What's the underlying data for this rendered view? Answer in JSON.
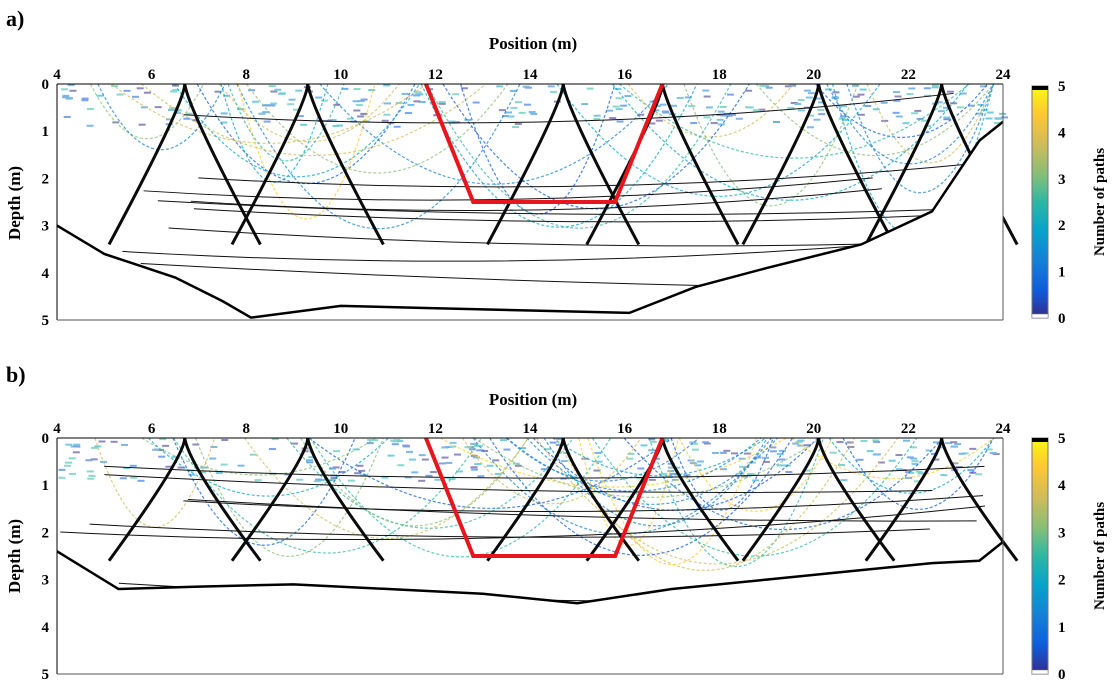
{
  "chart_data": [
    {
      "type": "heatmap",
      "panel_label": "a)",
      "xlabel": "Position (m)",
      "ylabel": "Depth (m)",
      "xlim": [
        4,
        24
      ],
      "ylim": [
        0,
        5
      ],
      "y_inverted": true,
      "x_axis_position": "top",
      "xticks": [
        "4",
        "6",
        "8",
        "10",
        "12",
        "14",
        "16",
        "18",
        "20",
        "22",
        "24"
      ],
      "yticks": [
        "0",
        "1",
        "2",
        "3",
        "4",
        "5"
      ],
      "colorbar": {
        "label": "Number of paths",
        "range": [
          0,
          5
        ],
        "ticks": [
          "0",
          "1",
          "2",
          "3",
          "4",
          "5"
        ],
        "colormap": "parula",
        "colors": [
          "#352a87",
          "#0f5cdd",
          "#1481d6",
          "#06a4ca",
          "#2eb7a4",
          "#87bf77",
          "#d1bb59",
          "#fec832",
          "#f9fb0e"
        ]
      },
      "overlay_trapezoid": {
        "color": "#e8161c",
        "x": [
          11.8,
          12.8,
          15.8,
          16.8
        ],
        "y": [
          0,
          2.5,
          2.5,
          0
        ]
      },
      "bottom_boundary": {
        "x": [
          4.0,
          5.0,
          6.5,
          7.5,
          8.1,
          10.0,
          12.0,
          14.0,
          16.1,
          17.5,
          19.0,
          21.0,
          22.5,
          23.5,
          24.0
        ],
        "y": [
          3.0,
          3.6,
          4.1,
          4.6,
          4.95,
          4.7,
          4.75,
          4.8,
          4.85,
          4.3,
          3.9,
          3.4,
          2.7,
          1.2,
          0.8
        ]
      }
    },
    {
      "type": "heatmap",
      "panel_label": "b)",
      "xlabel": "Position (m)",
      "ylabel": "Depth (m)",
      "xlim": [
        4,
        24
      ],
      "ylim": [
        0,
        5
      ],
      "y_inverted": true,
      "x_axis_position": "top",
      "xticks": [
        "4",
        "6",
        "8",
        "10",
        "12",
        "14",
        "16",
        "18",
        "20",
        "22",
        "24"
      ],
      "yticks": [
        "0",
        "1",
        "2",
        "3",
        "4",
        "5"
      ],
      "colorbar": {
        "label": "Number of paths",
        "range": [
          0,
          5
        ],
        "ticks": [
          "0",
          "1",
          "2",
          "3",
          "4",
          "5"
        ],
        "colormap": "parula",
        "colors": [
          "#352a87",
          "#0f5cdd",
          "#1481d6",
          "#06a4ca",
          "#2eb7a4",
          "#87bf77",
          "#d1bb59",
          "#fec832",
          "#f9fb0e"
        ]
      },
      "overlay_trapezoid": {
        "color": "#e8161c",
        "x": [
          11.8,
          12.8,
          15.8,
          16.8
        ],
        "y": [
          0,
          2.5,
          2.5,
          0
        ]
      },
      "bottom_boundary": {
        "x": [
          4.0,
          5.3,
          7.0,
          9.0,
          11.0,
          13.0,
          15.0,
          17.0,
          19.0,
          21.0,
          22.5,
          23.5,
          24.0
        ],
        "y": [
          2.4,
          3.2,
          3.15,
          3.1,
          3.2,
          3.3,
          3.5,
          3.2,
          3.0,
          2.8,
          2.65,
          2.6,
          2.2
        ]
      }
    }
  ]
}
